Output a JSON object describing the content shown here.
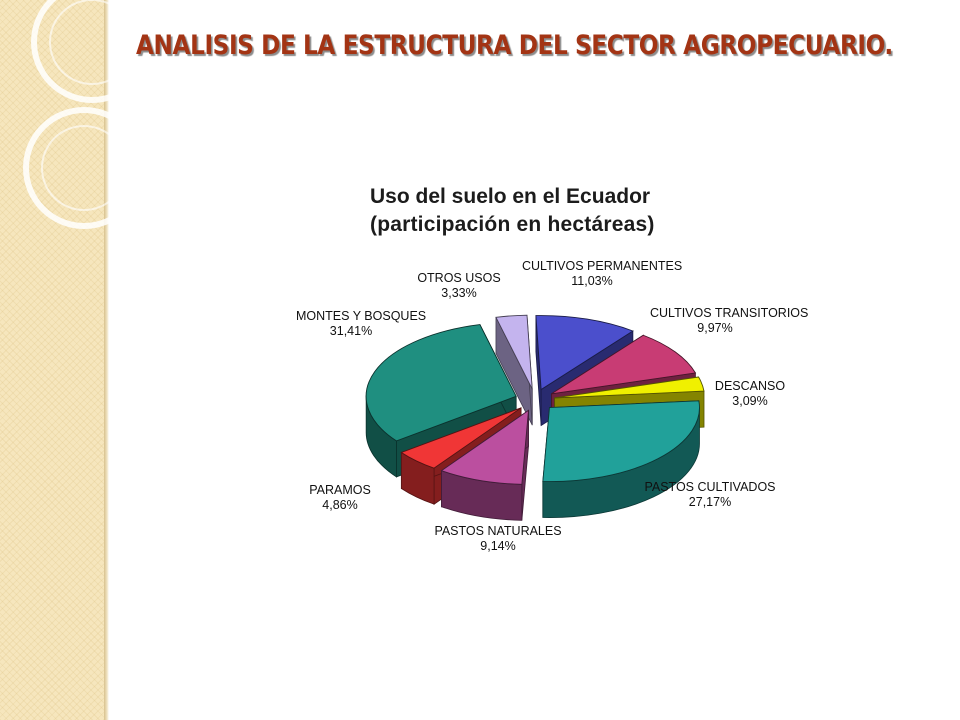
{
  "slide": {
    "title": "ANALISIS DE LA ESTRUCTURA DEL SECTOR AGROPECUARIO."
  },
  "colors": {
    "title": "#a33414",
    "side_panel": "#f6e6bd"
  },
  "chart_data": {
    "type": "pie",
    "style": "3d-exploded",
    "title": "Uso del suelo en el Ecuador",
    "subtitle": "(participación en hectáreas)",
    "slices": [
      {
        "label": "CULTIVOS PERMANENTES",
        "value": 11.03,
        "value_label": "11,03%",
        "color": "#4b4fcc"
      },
      {
        "label": "CULTIVOS TRANSITORIOS",
        "value": 9.97,
        "value_label": "9,97%",
        "color": "#c83c74"
      },
      {
        "label": "DESCANSO",
        "value": 3.09,
        "value_label": "3,09%",
        "color": "#f0f000"
      },
      {
        "label": "PASTOS CULTIVADOS",
        "value": 27.17,
        "value_label": "27,17%",
        "color": "#21a19a"
      },
      {
        "label": "PASTOS NATURALES",
        "value": 9.14,
        "value_label": "9,14%",
        "color": "#bb4f9f"
      },
      {
        "label": "PARAMOS",
        "value": 4.86,
        "value_label": "4,86%",
        "color": "#f03636"
      },
      {
        "label": "MONTES Y BOSQUES",
        "value": 31.41,
        "value_label": "31,41%",
        "color": "#1f8f80"
      },
      {
        "label": "OTROS USOS",
        "value": 3.33,
        "value_label": "3,33%",
        "color": "#c4b4ee"
      }
    ],
    "legend": "none",
    "data_labels": "outside"
  }
}
